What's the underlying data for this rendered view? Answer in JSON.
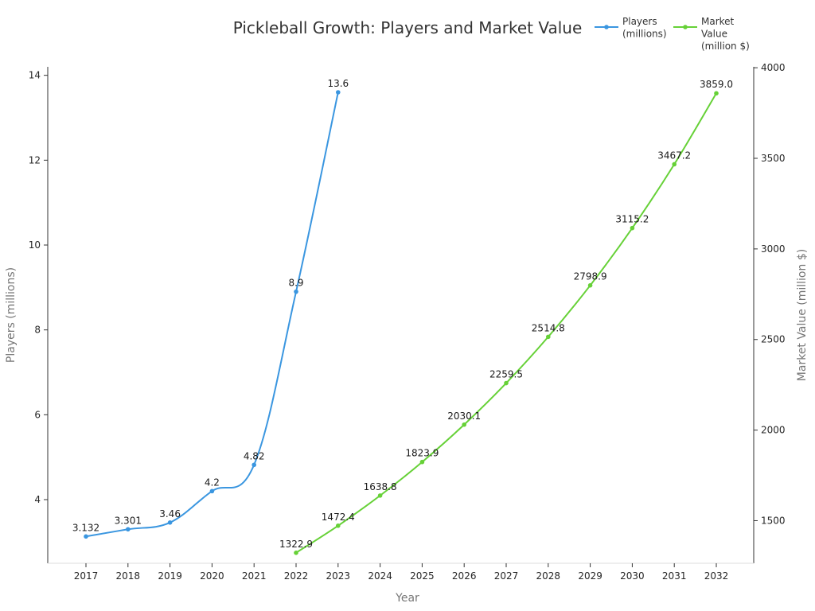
{
  "chart_data": {
    "type": "line",
    "title": "Pickleball Growth: Players and Market Value",
    "xlabel": "Year",
    "categories": [
      "2017",
      "2018",
      "2019",
      "2020",
      "2021",
      "2022",
      "2023",
      "2024",
      "2025",
      "2026",
      "2027",
      "2028",
      "2029",
      "2030",
      "2031",
      "2032"
    ],
    "left_axis": {
      "label": "Players (millions)",
      "range": [
        2.5,
        14.2
      ],
      "ticks": [
        "4",
        "6",
        "8",
        "10",
        "12",
        "14"
      ]
    },
    "right_axis": {
      "label": "Market Value (million $)",
      "range": [
        1265,
        4005
      ],
      "ticks": [
        "1500",
        "2000",
        "2500",
        "3000",
        "3500",
        "4000"
      ]
    },
    "series": [
      {
        "name": "Players (millions)",
        "legend_lines": [
          "Players",
          "(millions)"
        ],
        "axis": "left",
        "color": "#3a96e0",
        "x": [
          "2017",
          "2018",
          "2019",
          "2020",
          "2021",
          "2022",
          "2023"
        ],
        "values": [
          3.132,
          3.301,
          3.46,
          4.2,
          4.82,
          8.9,
          13.6
        ],
        "labels": [
          "3.132",
          "3.301",
          "3.46",
          "4.2",
          "4.82",
          "8.9",
          "13.6"
        ]
      },
      {
        "name": "Market Value (million $)",
        "legend_lines": [
          "Market",
          "Value",
          "(million $)"
        ],
        "axis": "right",
        "color": "#66d137",
        "x": [
          "2022",
          "2023",
          "2024",
          "2025",
          "2026",
          "2027",
          "2028",
          "2029",
          "2030",
          "2031",
          "2032"
        ],
        "values": [
          1322.9,
          1472.4,
          1638.8,
          1823.9,
          2030.1,
          2259.5,
          2514.8,
          2798.9,
          3115.2,
          3467.2,
          3859.0
        ],
        "labels": [
          "1322.9",
          "1472.4",
          "1638.8",
          "1823.9",
          "2030.1",
          "2259.5",
          "2514.8",
          "2798.9",
          "3115.2",
          "3467.2",
          "3859.0"
        ]
      }
    ],
    "legend": "top-right",
    "grid": false
  }
}
